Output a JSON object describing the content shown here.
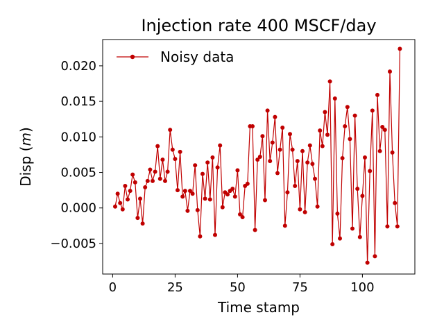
{
  "chart_data": {
    "type": "line",
    "title": "Injection rate 400 MSCF/day",
    "xlabel": "Time stamp",
    "ylabel_prefix": "Disp (",
    "ylabel_var": "m",
    "ylabel_suffix": ")",
    "xlim": [
      -4,
      121
    ],
    "ylim": [
      -0.0093,
      0.0237
    ],
    "xticks": [
      0,
      25,
      50,
      75,
      100
    ],
    "xtick_labels": [
      "0",
      "25",
      "50",
      "75",
      "100"
    ],
    "yticks": [
      -0.005,
      0.0,
      0.005,
      0.01,
      0.015,
      0.02
    ],
    "ytick_labels": [
      "−0.005",
      "0.000",
      "0.005",
      "0.010",
      "0.015",
      "0.020"
    ],
    "legend": {
      "position": "top-left",
      "entries": [
        "Noisy data"
      ]
    },
    "series": [
      {
        "name": "Noisy data",
        "color": "#c00000",
        "x": [
          1,
          2,
          3,
          4,
          5,
          6,
          7,
          8,
          9,
          10,
          11,
          12,
          13,
          14,
          15,
          16,
          17,
          18,
          19,
          20,
          21,
          22,
          23,
          24,
          25,
          26,
          27,
          28,
          29,
          30,
          31,
          32,
          33,
          34,
          35,
          36,
          37,
          38,
          39,
          40,
          41,
          42,
          43,
          44,
          45,
          46,
          47,
          48,
          49,
          50,
          51,
          52,
          53,
          54,
          55,
          56,
          57,
          58,
          59,
          60,
          61,
          62,
          63,
          64,
          65,
          66,
          67,
          68,
          69,
          70,
          71,
          72,
          73,
          74,
          75,
          76,
          77,
          78,
          79,
          80,
          81,
          82,
          83,
          84,
          85,
          86,
          87,
          88,
          89,
          90,
          91,
          92,
          93,
          94,
          95,
          96,
          97,
          98,
          99,
          100,
          101,
          102,
          103,
          104,
          105,
          106,
          107,
          108,
          109,
          110,
          111,
          112,
          113,
          114,
          115
        ],
        "values": [
          0.0002,
          0.002,
          0.0007,
          -0.0002,
          0.0031,
          0.0012,
          0.0024,
          0.0047,
          0.0036,
          -0.0014,
          0.0013,
          -0.0022,
          0.0029,
          0.0038,
          0.0054,
          0.0038,
          0.0051,
          0.0087,
          0.0041,
          0.0068,
          0.0038,
          0.0051,
          0.011,
          0.0082,
          0.0069,
          0.0025,
          0.0079,
          0.0016,
          0.0024,
          -0.0004,
          0.0024,
          0.002,
          0.006,
          -0.0003,
          -0.004,
          0.0048,
          0.0013,
          0.0064,
          0.0012,
          0.0071,
          -0.0038,
          0.0057,
          0.0088,
          0.0001,
          0.0022,
          0.0019,
          0.0024,
          0.0027,
          0.0016,
          0.0053,
          -0.0009,
          -0.0013,
          0.0031,
          0.0034,
          0.0115,
          0.0115,
          -0.0031,
          0.0068,
          0.0072,
          0.0101,
          0.0011,
          0.0137,
          0.0066,
          0.0092,
          0.0128,
          0.0049,
          0.0082,
          0.0113,
          -0.0025,
          0.0022,
          0.0104,
          0.0082,
          0.0031,
          0.0066,
          -0.0002,
          0.008,
          -0.0006,
          0.0064,
          0.0088,
          0.0062,
          0.0041,
          0.0002,
          0.0109,
          0.0087,
          0.0135,
          0.0103,
          0.0178,
          -0.0051,
          0.0154,
          -0.0008,
          -0.0043,
          0.007,
          0.0115,
          0.0142,
          0.0097,
          -0.0029,
          0.013,
          0.0027,
          -0.0041,
          0.0017,
          0.0071,
          -0.0077,
          0.0052,
          0.0137,
          -0.0068,
          0.0159,
          0.008,
          0.0114,
          0.011,
          -0.0026,
          0.0192,
          0.0078,
          0.0007,
          -0.0026,
          0.0224
        ]
      }
    ]
  }
}
